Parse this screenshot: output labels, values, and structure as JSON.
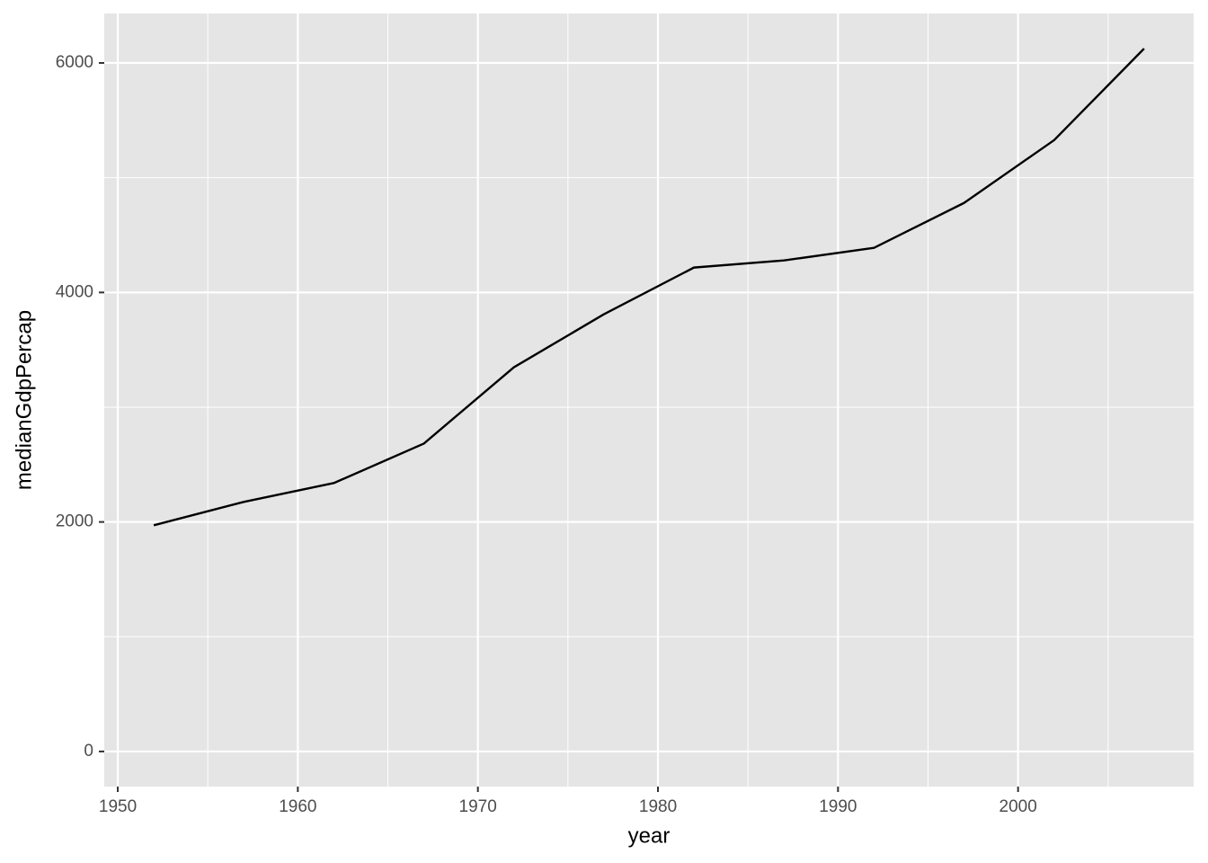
{
  "chart_data": {
    "type": "line",
    "x_label": "year",
    "y_label": "medianGdpPercap",
    "x": [
      1952,
      1957,
      1962,
      1967,
      1972,
      1977,
      1982,
      1987,
      1992,
      1997,
      2002,
      2007
    ],
    "values": [
      1971,
      2175,
      2339,
      2683,
      3348,
      3810,
      4217,
      4279,
      4389,
      4780,
      5327,
      6125
    ],
    "color": "#000000",
    "xlim": [
      1949.25,
      2009.75
    ],
    "xticks": [
      1950,
      1960,
      1970,
      1980,
      1990,
      2000
    ],
    "ylim": [
      -306,
      6431
    ],
    "yticks": [
      0,
      2000,
      4000,
      6000
    ],
    "grid": true
  }
}
